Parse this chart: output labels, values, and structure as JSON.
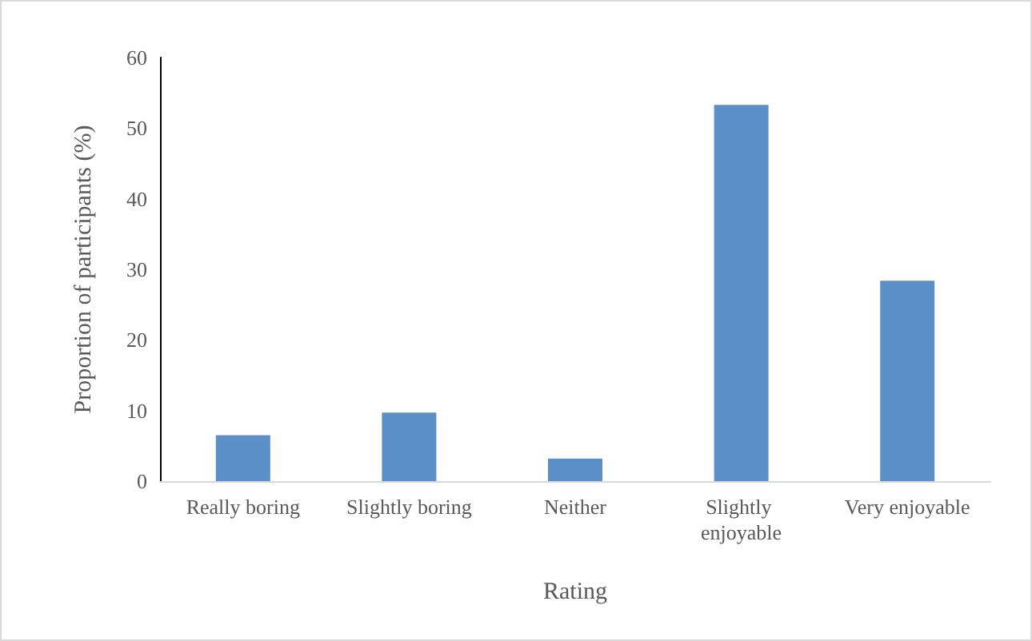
{
  "chart_data": {
    "type": "bar",
    "xlabel": "Rating",
    "ylabel": "Proportion of participants (%)",
    "categories": [
      "Really boring",
      "Slightly boring",
      "Neither",
      "Slightly enjoyable",
      "Very enjoyable"
    ],
    "values": [
      6.5,
      9.7,
      3.2,
      53.3,
      28.4
    ],
    "color": "#5b8fc7",
    "ylim": [
      0,
      60
    ],
    "yticks": [
      0,
      10,
      20,
      30,
      40,
      50,
      60
    ]
  }
}
